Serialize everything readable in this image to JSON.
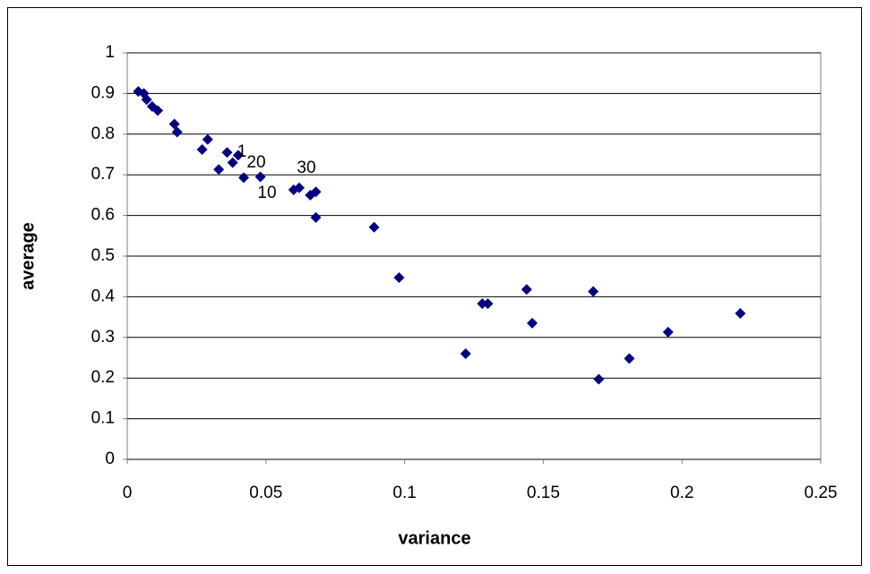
{
  "chart_data": {
    "type": "scatter",
    "x_label": "variance",
    "y_label": "average",
    "x": [
      0.004,
      0.006,
      0.007,
      0.009,
      0.011,
      0.017,
      0.018,
      0.027,
      0.029,
      0.033,
      0.036,
      0.038,
      0.04,
      0.042,
      0.048,
      0.06,
      0.062,
      0.066,
      0.068,
      0.068,
      0.089,
      0.098,
      0.122,
      0.128,
      0.13,
      0.144,
      0.146,
      0.168,
      0.17,
      0.181,
      0.195,
      0.221
    ],
    "values": [
      0.905,
      0.9,
      0.885,
      0.868,
      0.858,
      0.825,
      0.805,
      0.762,
      0.787,
      0.713,
      0.755,
      0.73,
      0.748,
      0.693,
      0.695,
      0.663,
      0.668,
      0.65,
      0.658,
      0.595,
      0.571,
      0.447,
      0.26,
      0.383,
      0.383,
      0.418,
      0.335,
      0.413,
      0.197,
      0.248,
      0.313,
      0.359
    ],
    "color": "#000080",
    "annotations": [
      "1",
      "20",
      "10",
      "30"
    ],
    "xlim": [
      0,
      0.25
    ],
    "xticks": [
      0,
      0.05,
      0.1,
      0.15,
      0.2,
      0.25
    ],
    "ylim": [
      0,
      1
    ],
    "yticks": [
      0,
      0.1,
      0.2,
      0.3,
      0.4,
      0.5,
      0.6,
      0.7,
      0.8,
      0.9,
      1
    ],
    "grid": true
  }
}
